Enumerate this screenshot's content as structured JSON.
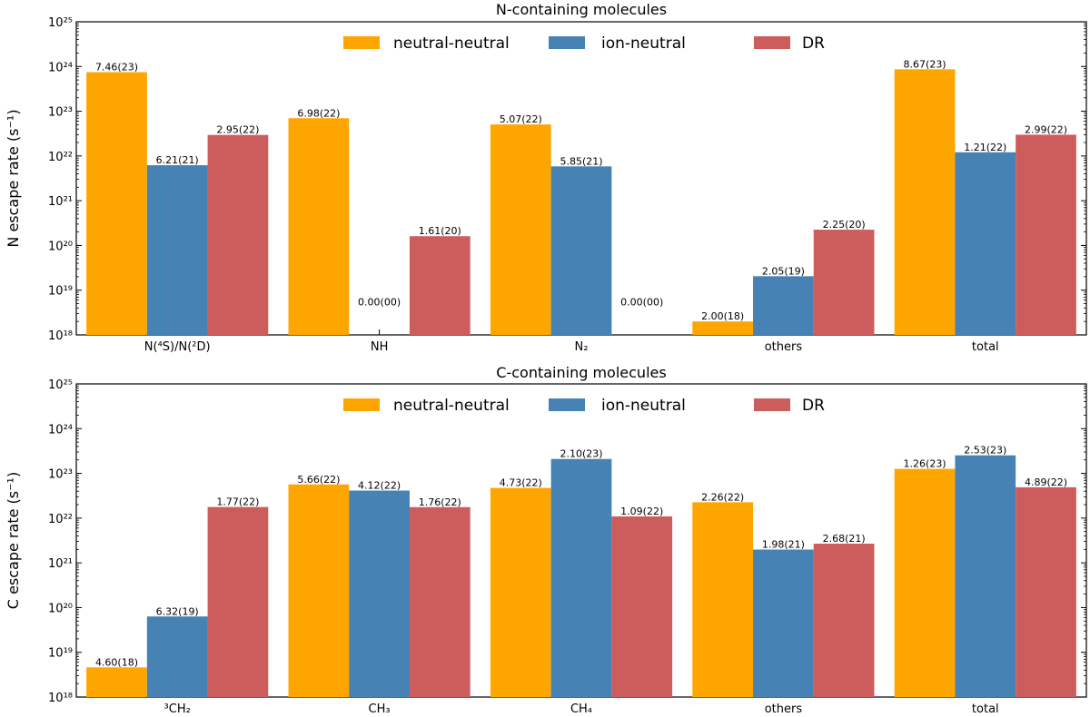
{
  "chart_data": [
    {
      "type": "bar",
      "title": "N-containing molecules",
      "ylabel": "N escape rate (s⁻¹)",
      "yscale": "log",
      "ylim": [
        1e+18,
        1e+25
      ],
      "ytick_labels": [
        "10¹⁸",
        "10¹⁹",
        "10²⁰",
        "10²¹",
        "10²²",
        "10²³",
        "10²⁴",
        "10²⁵"
      ],
      "categories": [
        "N(⁴S)/N(²D)",
        "NH",
        "N₂",
        "others",
        "total"
      ],
      "legend_position": "top-center",
      "series": [
        {
          "name": "neutral-neutral",
          "color": "#FFA500",
          "values": [
            7.46e+23,
            6.98e+22,
            5.07e+22,
            2e+18,
            8.67e+23
          ],
          "labels": [
            "7.46(23)",
            "6.98(22)",
            "5.07(22)",
            "2.00(18)",
            "8.67(23)"
          ]
        },
        {
          "name": "ion-neutral",
          "color": "#4682B4",
          "values": [
            6.21e+21,
            0,
            5.85e+21,
            2.05e+19,
            1.21e+22
          ],
          "labels": [
            "6.21(21)",
            "0.00(00)",
            "5.85(21)",
            "2.05(19)",
            "1.21(22)"
          ]
        },
        {
          "name": "DR",
          "color": "#CD5C5C",
          "values": [
            2.95e+22,
            1.61e+20,
            0,
            2.25e+20,
            2.99e+22
          ],
          "labels": [
            "2.95(22)",
            "1.61(20)",
            "0.00(00)",
            "2.25(20)",
            "2.99(22)"
          ]
        }
      ]
    },
    {
      "type": "bar",
      "title": "C-containing molecules",
      "ylabel": "C escape rate (s⁻¹)",
      "yscale": "log",
      "ylim": [
        1e+18,
        1e+25
      ],
      "ytick_labels": [
        "10¹⁸",
        "10¹⁹",
        "10²⁰",
        "10²¹",
        "10²²",
        "10²³",
        "10²⁴",
        "10²⁵"
      ],
      "categories": [
        "³CH₂",
        "CH₃",
        "CH₄",
        "others",
        "total"
      ],
      "legend_position": "top-center",
      "series": [
        {
          "name": "neutral-neutral",
          "color": "#FFA500",
          "values": [
            4.6e+18,
            5.66e+22,
            4.73e+22,
            2.26e+22,
            1.26e+23
          ],
          "labels": [
            "4.60(18)",
            "5.66(22)",
            "4.73(22)",
            "2.26(22)",
            "1.26(23)"
          ]
        },
        {
          "name": "ion-neutral",
          "color": "#4682B4",
          "values": [
            6.32e+19,
            4.12e+22,
            2.1e+23,
            1.98e+21,
            2.53e+23
          ],
          "labels": [
            "6.32(19)",
            "4.12(22)",
            "2.10(23)",
            "1.98(21)",
            "2.53(23)"
          ]
        },
        {
          "name": "DR",
          "color": "#CD5C5C",
          "values": [
            1.77e+22,
            1.76e+22,
            1.09e+22,
            2.68e+21,
            4.89e+22
          ],
          "labels": [
            "1.77(22)",
            "1.76(22)",
            "1.09(22)",
            "2.68(21)",
            "4.89(22)"
          ]
        }
      ]
    }
  ]
}
